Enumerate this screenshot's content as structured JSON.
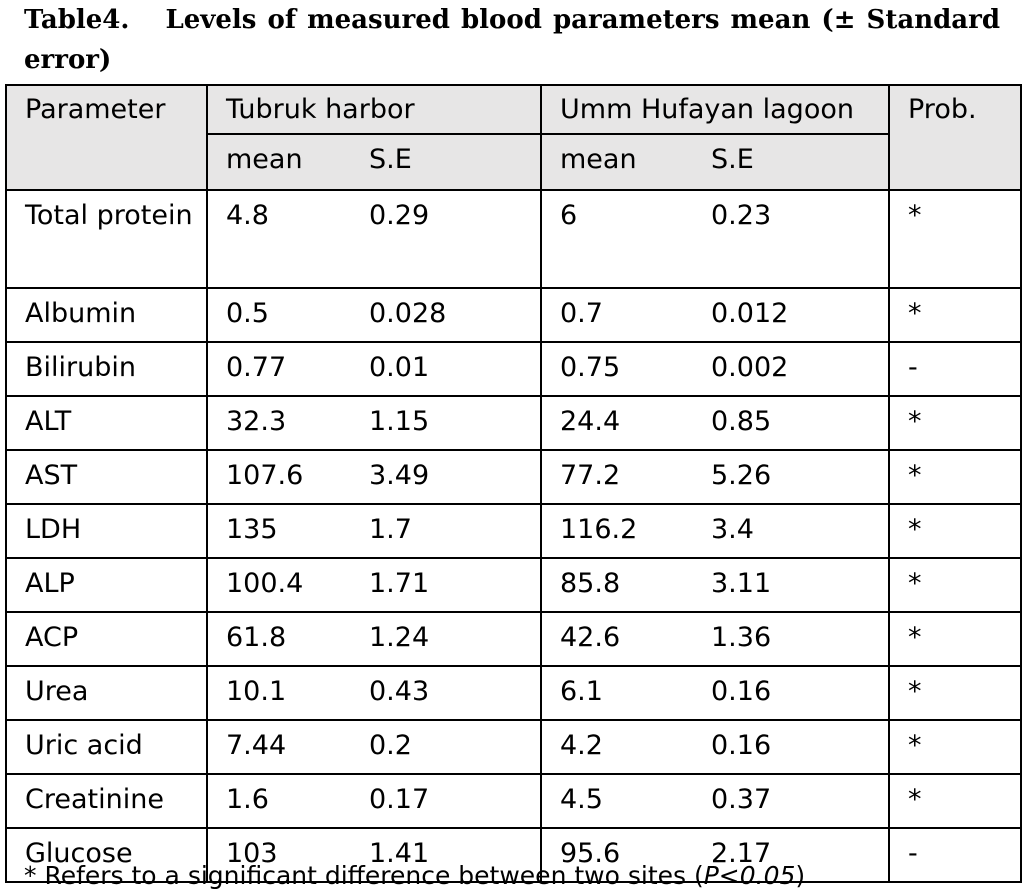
{
  "table": {
    "title_prefix": "Table4.",
    "title_text": "Levels of measured blood parameters mean (± Standard error)",
    "headers": {
      "parameter": "Parameter",
      "site1": "Tubruk harbor",
      "site2": "Umm Hufayan lagoon",
      "prob": "Prob.",
      "site1_mean": "mean",
      "site1_se": "S.E",
      "site2_mean": "mean",
      "site2_se": "S.E"
    },
    "rows": [
      {
        "parameter": "Total protein",
        "t_mean": "4.8",
        "t_se": "0.29",
        "u_mean": "6",
        "u_se": "0.23",
        "prob": "*"
      },
      {
        "parameter": "Albumin",
        "t_mean": "0.5",
        "t_se": "0.028",
        "u_mean": "0.7",
        "u_se": "0.012",
        "prob": "*"
      },
      {
        "parameter": "Bilirubin",
        "t_mean": "0.77",
        "t_se": "0.01",
        "u_mean": "0.75",
        "u_se": "0.002",
        "prob": "-"
      },
      {
        "parameter": "ALT",
        "t_mean": "32.3",
        "t_se": "1.15",
        "u_mean": "24.4",
        "u_se": "0.85",
        "prob": "*"
      },
      {
        "parameter": "AST",
        "t_mean": "107.6",
        "t_se": "3.49",
        "u_mean": "77.2",
        "u_se": "5.26",
        "prob": "*"
      },
      {
        "parameter": "LDH",
        "t_mean": "135",
        "t_se": "1.7",
        "u_mean": "116.2",
        "u_se": "3.4",
        "prob": "*"
      },
      {
        "parameter": "ALP",
        "t_mean": "100.4",
        "t_se": "1.71",
        "u_mean": "85.8",
        "u_se": "3.11",
        "prob": "*"
      },
      {
        "parameter": "ACP",
        "t_mean": "61.8",
        "t_se": "1.24",
        "u_mean": "42.6",
        "u_se": "1.36",
        "prob": "*"
      },
      {
        "parameter": "Urea",
        "t_mean": "10.1",
        "t_se": "0.43",
        "u_mean": "6.1",
        "u_se": "0.16",
        "prob": "*"
      },
      {
        "parameter": "Uric acid",
        "t_mean": "7.44",
        "t_se": "0.2",
        "u_mean": "4.2",
        "u_se": "0.16",
        "prob": "*"
      },
      {
        "parameter": "Creatinine",
        "t_mean": "1.6",
        "t_se": "0.17",
        "u_mean": "4.5",
        "u_se": "0.37",
        "prob": "*"
      },
      {
        "parameter": "Glucose",
        "t_mean": "103",
        "t_se": "1.41",
        "u_mean": "95.6",
        "u_se": "2.17",
        "prob": "-"
      }
    ],
    "footnote_text": "* Refers to a significant difference between two sites (",
    "footnote_p": "P<0.05",
    "footnote_close": ")",
    "header_fill_color": "#e7e6e6",
    "border_color": "#000000"
  }
}
